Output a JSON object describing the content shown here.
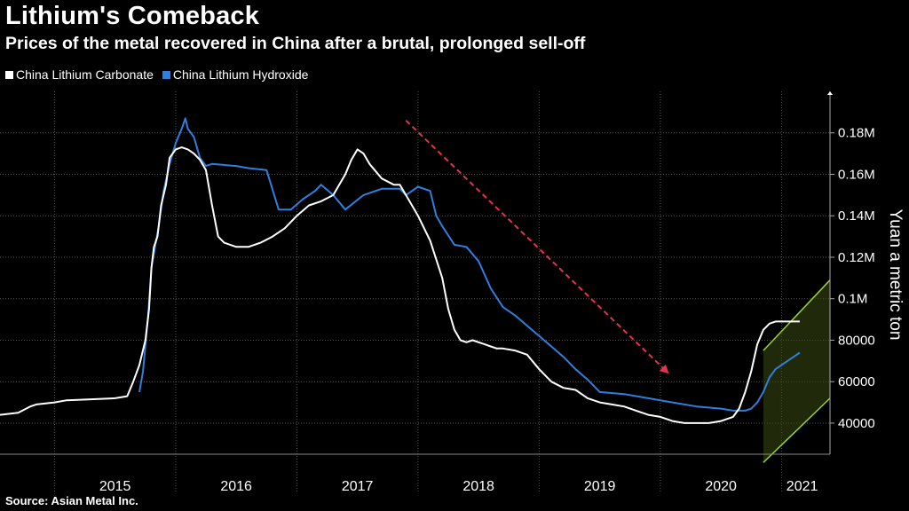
{
  "title": "Lithium's Comeback",
  "subtitle": "Prices of the metal recovered in China after a brutal, prolonged sell-off",
  "source": "Source: Asian Metal Inc.",
  "colors": {
    "background": "#000000",
    "carbonate": "#ffffff",
    "hydroxide": "#2f7fe0",
    "trend_arrow": "#e8314a",
    "channel": "#9bd235",
    "channel_fill": "#3a4a10",
    "grid": "#555555"
  },
  "chart_data": {
    "type": "line",
    "title": "Lithium's Comeback",
    "subtitle": "Prices of the metal recovered in China after a brutal, prolonged sell-off",
    "ylabel": "Yuan a metric ton",
    "xlabel": "",
    "ylim": [
      25000,
      200000
    ],
    "xlim": [
      2014.55,
      2021.4
    ],
    "yticks": [
      40000,
      60000,
      80000,
      100000,
      120000,
      140000,
      160000,
      180000
    ],
    "ytick_labels": [
      "40000",
      "60000",
      "80000",
      "0.1M",
      "0.12M",
      "0.14M",
      "0.16M",
      "0.18M"
    ],
    "x_year_boundaries": [
      2015,
      2016,
      2017,
      2018,
      2019,
      2020,
      2021
    ],
    "x_labels": [
      {
        "label": "2015",
        "x": 2015.5
      },
      {
        "label": "2016",
        "x": 2016.5
      },
      {
        "label": "2017",
        "x": 2017.5
      },
      {
        "label": "2018",
        "x": 2018.5
      },
      {
        "label": "2019",
        "x": 2019.5
      },
      {
        "label": "2020",
        "x": 2020.5
      },
      {
        "label": "2021",
        "x": 2021.17
      }
    ],
    "legend": [
      "China Lithium Carbonate",
      "China Lithium Hydroxide"
    ],
    "legend_position": "top-left",
    "series": [
      {
        "name": "China Lithium Carbonate",
        "x": [
          2014.55,
          2014.7,
          2014.8,
          2014.85,
          2015.0,
          2015.1,
          2015.3,
          2015.5,
          2015.6,
          2015.65,
          2015.7,
          2015.75,
          2015.78,
          2015.8,
          2015.82,
          2015.85,
          2015.88,
          2015.92,
          2015.95,
          2016.0,
          2016.05,
          2016.1,
          2016.15,
          2016.2,
          2016.25,
          2016.3,
          2016.35,
          2016.4,
          2016.45,
          2016.5,
          2016.6,
          2016.7,
          2016.8,
          2016.9,
          2017.0,
          2017.1,
          2017.2,
          2017.3,
          2017.4,
          2017.45,
          2017.5,
          2017.55,
          2017.6,
          2017.7,
          2017.8,
          2017.85,
          2017.9,
          2017.95,
          2018.0,
          2018.1,
          2018.2,
          2018.25,
          2018.3,
          2018.35,
          2018.4,
          2018.45,
          2018.5,
          2018.55,
          2018.6,
          2018.65,
          2018.7,
          2018.8,
          2018.9,
          2019.0,
          2019.1,
          2019.2,
          2019.3,
          2019.4,
          2019.5,
          2019.6,
          2019.7,
          2019.8,
          2019.9,
          2020.0,
          2020.1,
          2020.2,
          2020.3,
          2020.4,
          2020.5,
          2020.6,
          2020.65,
          2020.7,
          2020.75,
          2020.8,
          2020.85,
          2020.9,
          2020.95,
          2021.0,
          2021.05,
          2021.1,
          2021.15
        ],
        "values": [
          44000,
          45000,
          48000,
          49000,
          50000,
          51000,
          51500,
          52000,
          53000,
          60000,
          68000,
          80000,
          95000,
          115000,
          125000,
          130000,
          145000,
          155000,
          168000,
          172000,
          173000,
          172000,
          170000,
          167000,
          162000,
          145000,
          130000,
          127000,
          126000,
          125000,
          125000,
          127000,
          130000,
          134000,
          140000,
          145000,
          147000,
          150000,
          160000,
          167000,
          172000,
          170000,
          165000,
          158000,
          155000,
          155000,
          150000,
          145000,
          140000,
          128000,
          110000,
          95000,
          85000,
          80000,
          79000,
          80000,
          79000,
          78000,
          77000,
          76000,
          76000,
          75000,
          73000,
          66000,
          60000,
          57000,
          56000,
          52000,
          50000,
          49000,
          48000,
          46000,
          44000,
          43000,
          41000,
          40000,
          40000,
          40000,
          41000,
          43000,
          47000,
          55000,
          65000,
          78000,
          85000,
          88000,
          89000,
          89000,
          89000,
          89000,
          89000
        ]
      },
      {
        "name": "China Lithium Hydroxide",
        "x": [
          2015.7,
          2015.73,
          2015.77,
          2015.8,
          2015.83,
          2015.86,
          2015.9,
          2015.95,
          2016.0,
          2016.05,
          2016.08,
          2016.1,
          2016.15,
          2016.2,
          2016.25,
          2016.3,
          2016.5,
          2016.6,
          2016.75,
          2016.85,
          2016.95,
          2017.05,
          2017.15,
          2017.2,
          2017.3,
          2017.4,
          2017.55,
          2017.7,
          2017.85,
          2017.9,
          2018.0,
          2018.1,
          2018.15,
          2018.2,
          2018.3,
          2018.4,
          2018.5,
          2018.6,
          2018.7,
          2018.8,
          2018.9,
          2019.0,
          2019.1,
          2019.2,
          2019.3,
          2019.4,
          2019.5,
          2019.7,
          2019.9,
          2020.1,
          2020.3,
          2020.5,
          2020.6,
          2020.7,
          2020.75,
          2020.8,
          2020.85,
          2020.9,
          2020.95,
          2021.0,
          2021.05,
          2021.1,
          2021.15
        ],
        "values": [
          55000,
          65000,
          90000,
          115000,
          125000,
          135000,
          152000,
          165000,
          175000,
          182000,
          187000,
          182000,
          178000,
          168000,
          164000,
          165000,
          164000,
          163000,
          162000,
          143000,
          143000,
          148000,
          152000,
          155000,
          150000,
          143000,
          150000,
          153000,
          153000,
          150000,
          154000,
          152000,
          140000,
          135000,
          126000,
          125000,
          118000,
          105000,
          96000,
          92000,
          87000,
          82000,
          77000,
          72000,
          66000,
          61000,
          55000,
          54000,
          52000,
          50000,
          48000,
          47000,
          46000,
          46000,
          47000,
          50000,
          55000,
          62000,
          66000,
          68000,
          70000,
          72000,
          74000
        ]
      }
    ],
    "annotations": {
      "trend_arrow": {
        "from": [
          2017.9,
          186000
        ],
        "to": [
          2020.05,
          65000
        ]
      },
      "channel": {
        "x_range": [
          2020.85,
          2021.4
        ],
        "upper": [
          [
            2020.85,
            75000
          ],
          [
            2021.4,
            109000
          ]
        ],
        "lower": [
          [
            2020.85,
            21000
          ],
          [
            2021.4,
            52000
          ]
        ]
      }
    }
  }
}
